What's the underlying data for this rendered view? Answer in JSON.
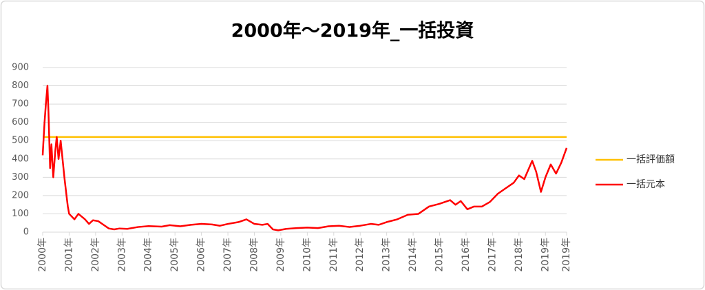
{
  "chart_data": {
    "type": "line",
    "title": "2000年～2019年_一括投資",
    "xlim": [
      2000,
      2019.8
    ],
    "xticks": [
      {
        "value": 2000,
        "label": "2000年"
      },
      {
        "value": 2001,
        "label": "2001年"
      },
      {
        "value": 2002,
        "label": "2002年"
      },
      {
        "value": 2003,
        "label": "2003年"
      },
      {
        "value": 2004,
        "label": "2004年"
      },
      {
        "value": 2005,
        "label": "2005年"
      },
      {
        "value": 2006,
        "label": "2006年"
      },
      {
        "value": 2007,
        "label": "2007年"
      },
      {
        "value": 2008,
        "label": "2008年"
      },
      {
        "value": 2009,
        "label": "2009年"
      },
      {
        "value": 2010,
        "label": "2010年"
      },
      {
        "value": 2011,
        "label": "2011年"
      },
      {
        "value": 2012,
        "label": "2012年"
      },
      {
        "value": 2013,
        "label": "2013年"
      },
      {
        "value": 2014,
        "label": "2014年"
      },
      {
        "value": 2015,
        "label": "2015年"
      },
      {
        "value": 2016,
        "label": "2016年"
      },
      {
        "value": 2017,
        "label": "2017年"
      },
      {
        "value": 2018,
        "label": "2018年"
      },
      {
        "value": 2019,
        "label": "2019年"
      },
      {
        "value": 2019.8,
        "label": "2019年"
      }
    ],
    "ylim": [
      0,
      900
    ],
    "yticks": [
      0,
      100,
      200,
      300,
      400,
      500,
      600,
      700,
      800,
      900
    ],
    "grid": true,
    "legend": "right",
    "series": [
      {
        "name": "一括評価額",
        "color": "#ffc000",
        "x": [
          2000,
          2019.8
        ],
        "values": [
          520,
          520
        ]
      },
      {
        "name": "一括元本",
        "color": "#ff0000",
        "x": [
          2000.0,
          2000.03,
          2000.07,
          2000.12,
          2000.18,
          2000.22,
          2000.28,
          2000.33,
          2000.4,
          2000.48,
          2000.53,
          2000.6,
          2000.68,
          2000.75,
          2000.82,
          2000.9,
          2000.95,
          2001.0,
          2001.2,
          2001.35,
          2001.6,
          2001.75,
          2001.9,
          2002.1,
          2002.3,
          2002.5,
          2002.7,
          2002.9,
          2003.2,
          2003.6,
          2004.0,
          2004.5,
          2004.8,
          2005.2,
          2005.6,
          2006.0,
          2006.4,
          2006.7,
          2007.0,
          2007.4,
          2007.7,
          2008.0,
          2008.3,
          2008.5,
          2008.7,
          2008.9,
          2009.2,
          2009.6,
          2010.0,
          2010.4,
          2010.8,
          2011.2,
          2011.6,
          2012.0,
          2012.4,
          2012.7,
          2013.0,
          2013.4,
          2013.8,
          2014.2,
          2014.6,
          2015.0,
          2015.4,
          2015.6,
          2015.8,
          2016.05,
          2016.3,
          2016.6,
          2016.9,
          2017.2,
          2017.5,
          2017.8,
          2018.0,
          2018.2,
          2018.5,
          2018.65,
          2018.83,
          2019.0,
          2019.2,
          2019.4,
          2019.6,
          2019.8
        ],
        "values": [
          420,
          500,
          600,
          700,
          800,
          650,
          350,
          480,
          300,
          450,
          520,
          400,
          500,
          400,
          300,
          200,
          140,
          100,
          70,
          100,
          70,
          45,
          65,
          60,
          40,
          20,
          15,
          20,
          18,
          28,
          33,
          30,
          38,
          32,
          40,
          45,
          42,
          35,
          45,
          55,
          70,
          45,
          40,
          45,
          15,
          10,
          18,
          22,
          25,
          22,
          32,
          35,
          28,
          35,
          45,
          40,
          55,
          70,
          95,
          100,
          140,
          155,
          175,
          150,
          170,
          125,
          140,
          140,
          165,
          210,
          240,
          270,
          310,
          290,
          390,
          330,
          220,
          300,
          370,
          320,
          380,
          460
        ]
      }
    ]
  }
}
